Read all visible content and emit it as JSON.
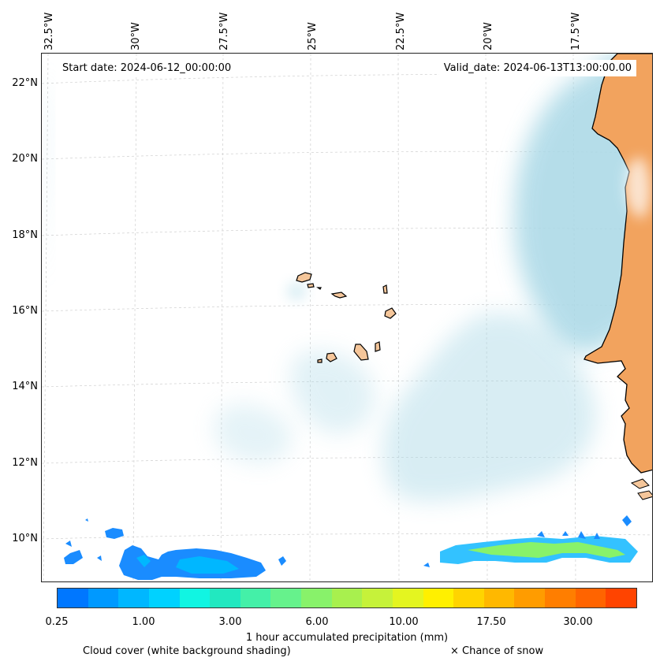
{
  "map": {
    "start_date": "Start date: 2024-06-12_00:00:00",
    "valid_date": "Valid_date: 2024-06-13T13:00:00.00",
    "lon_labels": [
      "32.5°W",
      "30°W",
      "27.5°W",
      "25°W",
      "22.5°W",
      "20°W",
      "17.5°W"
    ],
    "lat_labels": [
      "22°N",
      "20°N",
      "18°N",
      "16°N",
      "14°N",
      "12°N",
      "10°N"
    ],
    "land_color": "#f2a35e",
    "island_color": "#f5c69a",
    "cloud_color": "#a9d8e6"
  },
  "colorbar": {
    "tick_labels": [
      "0.25",
      "1.00",
      "3.00",
      "6.00",
      "10.00",
      "17.50",
      "30.00"
    ],
    "colors": [
      "#0077ff",
      "#0099ff",
      "#00b7ff",
      "#00d2ff",
      "#11f5e2",
      "#22e8c0",
      "#44f0a8",
      "#66f28c",
      "#88f26a",
      "#a8f04e",
      "#c6f23a",
      "#e4f520",
      "#fff000",
      "#ffd400",
      "#ffb800",
      "#ff9c00",
      "#ff7e00",
      "#ff6400",
      "#ff4400"
    ],
    "label": "1 hour accumulated precipitation (mm)"
  },
  "legend": {
    "cloud_cover": "Cloud cover (white background shading)",
    "snow": "× Chance of snow"
  }
}
